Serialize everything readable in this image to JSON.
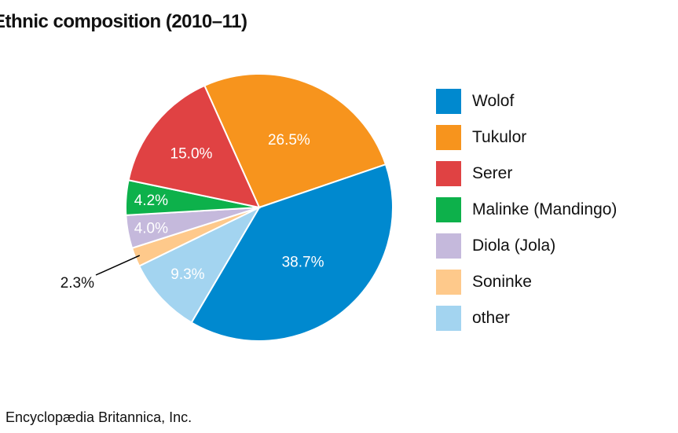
{
  "chart_data": {
    "type": "pie",
    "title": "Ethnic composition (2010–11)",
    "slices": [
      {
        "name": "Tukulor",
        "value": 26.5,
        "label": "26.5%",
        "color": "#f7941d"
      },
      {
        "name": "Wolof",
        "value": 38.7,
        "label": "38.7%",
        "color": "#0089cf"
      },
      {
        "name": "other",
        "value": 9.3,
        "label": "9.3%",
        "color": "#a3d4f0"
      },
      {
        "name": "Soninke",
        "value": 2.3,
        "label": "2.3%",
        "color": "#fec98b"
      },
      {
        "name": "Diola (Jola)",
        "value": 4.0,
        "label": "4.0%",
        "color": "#c5b9dc"
      },
      {
        "name": "Malinke (Mandingo)",
        "value": 4.2,
        "label": "4.2%",
        "color": "#0db14b"
      },
      {
        "name": "Serer",
        "value": 15.0,
        "label": "15.0%",
        "color": "#e04243"
      }
    ],
    "legend": [
      "Wolof",
      "Tukulor",
      "Serer",
      "Malinke (Mandingo)",
      "Diola (Jola)",
      "Soninke",
      "other"
    ],
    "legend_position": "right"
  },
  "credit": "Encyclopædia Britannica, Inc."
}
